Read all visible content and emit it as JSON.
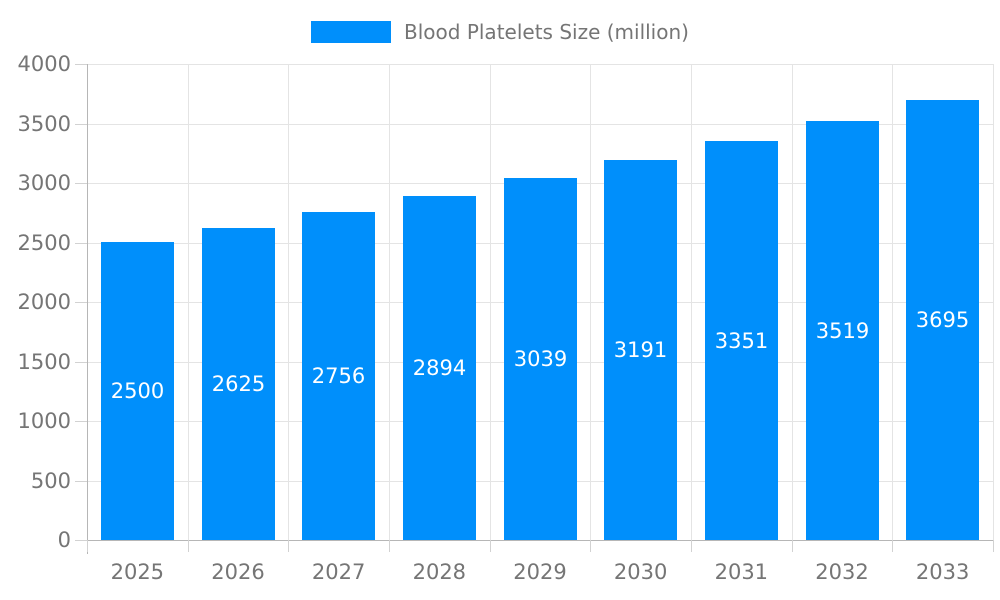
{
  "chart_data": {
    "type": "bar",
    "title": "Blood Platelets Size (million)",
    "legend": {
      "label": "Blood Platelets Size (million)",
      "position": "top"
    },
    "categories": [
      "2025",
      "2026",
      "2027",
      "2028",
      "2029",
      "2030",
      "2031",
      "2032",
      "2033"
    ],
    "series": [
      {
        "name": "Blood Platelets Size (million)",
        "values": [
          2500,
          2625,
          2756,
          2894,
          3039,
          3191,
          3351,
          3519,
          3695
        ]
      }
    ],
    "xlabel": "",
    "ylabel": "",
    "ylim": [
      0,
      4000
    ],
    "yticks": [
      0,
      500,
      1000,
      1500,
      2000,
      2500,
      3000,
      3500,
      4000
    ],
    "grid": "both",
    "data_labels_shown": true,
    "colors": {
      "bar": "#008FFB",
      "grid": "#e4e4e4",
      "axis_line": "#b6b6b6",
      "tick": "#d2d2d2",
      "axis_label_text": "#757575",
      "legend_text": "#757575",
      "bar_label_text": "#ffffff",
      "background": "#ffffff"
    }
  }
}
